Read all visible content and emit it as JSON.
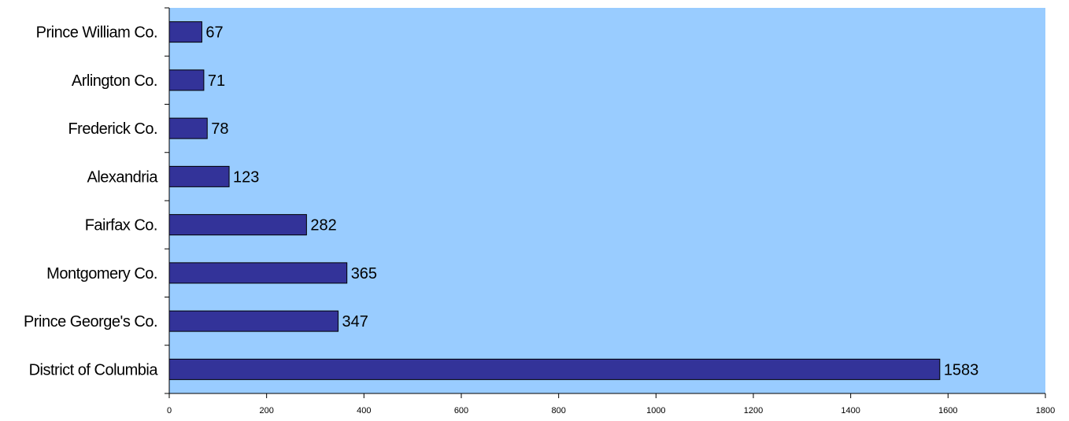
{
  "chart_data": {
    "type": "bar",
    "orientation": "horizontal",
    "title": "",
    "xlabel": "",
    "ylabel": "",
    "categories": [
      "District of Columbia",
      "Prince George's Co.",
      "Montgomery Co.",
      "Fairfax Co.",
      "Alexandria",
      "Frederick Co.",
      "Arlington Co.",
      "Prince William Co."
    ],
    "values": [
      1583,
      347,
      365,
      282,
      123,
      78,
      71,
      67
    ],
    "xlim": [
      0,
      1800
    ],
    "xticks": [
      0,
      200,
      400,
      600,
      800,
      1000,
      1200,
      1400,
      1600,
      1800
    ],
    "grid": false,
    "legend": "none",
    "data_labels": true,
    "colors": {
      "plot_background": "#99ccff",
      "bar_fill": "#333399",
      "bar_stroke": "#000000"
    }
  }
}
